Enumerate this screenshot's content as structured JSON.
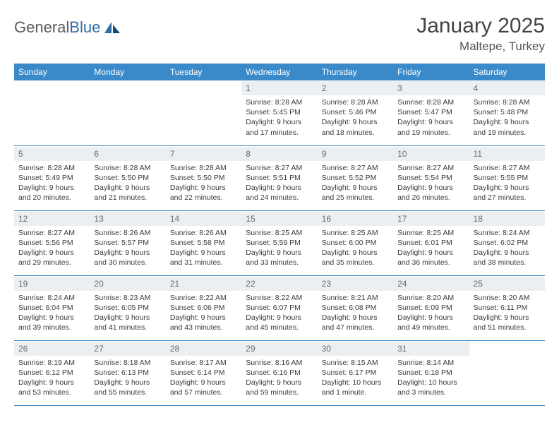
{
  "brand": {
    "name_a": "General",
    "name_b": "Blue"
  },
  "title": "January 2025",
  "location": "Maltepe, Turkey",
  "colors": {
    "header_bg": "#3a8ac9",
    "header_text": "#ffffff",
    "daynum_bg": "#eceff1",
    "border": "#3a8ac9",
    "body_text": "#3b3b3b",
    "title_text": "#444444",
    "logo_gray": "#5a5a5a",
    "logo_blue": "#2f6fa8"
  },
  "weekdays": [
    "Sunday",
    "Monday",
    "Tuesday",
    "Wednesday",
    "Thursday",
    "Friday",
    "Saturday"
  ],
  "font": {
    "family": "Arial",
    "day_header_size_pt": 9,
    "cell_size_pt": 8,
    "title_size_pt": 22
  },
  "weeks": [
    [
      null,
      null,
      null,
      {
        "n": "1",
        "sunrise": "8:28 AM",
        "sunset": "5:45 PM",
        "daylight": "9 hours and 17 minutes."
      },
      {
        "n": "2",
        "sunrise": "8:28 AM",
        "sunset": "5:46 PM",
        "daylight": "9 hours and 18 minutes."
      },
      {
        "n": "3",
        "sunrise": "8:28 AM",
        "sunset": "5:47 PM",
        "daylight": "9 hours and 19 minutes."
      },
      {
        "n": "4",
        "sunrise": "8:28 AM",
        "sunset": "5:48 PM",
        "daylight": "9 hours and 19 minutes."
      }
    ],
    [
      {
        "n": "5",
        "sunrise": "8:28 AM",
        "sunset": "5:49 PM",
        "daylight": "9 hours and 20 minutes."
      },
      {
        "n": "6",
        "sunrise": "8:28 AM",
        "sunset": "5:50 PM",
        "daylight": "9 hours and 21 minutes."
      },
      {
        "n": "7",
        "sunrise": "8:28 AM",
        "sunset": "5:50 PM",
        "daylight": "9 hours and 22 minutes."
      },
      {
        "n": "8",
        "sunrise": "8:27 AM",
        "sunset": "5:51 PM",
        "daylight": "9 hours and 24 minutes."
      },
      {
        "n": "9",
        "sunrise": "8:27 AM",
        "sunset": "5:52 PM",
        "daylight": "9 hours and 25 minutes."
      },
      {
        "n": "10",
        "sunrise": "8:27 AM",
        "sunset": "5:54 PM",
        "daylight": "9 hours and 26 minutes."
      },
      {
        "n": "11",
        "sunrise": "8:27 AM",
        "sunset": "5:55 PM",
        "daylight": "9 hours and 27 minutes."
      }
    ],
    [
      {
        "n": "12",
        "sunrise": "8:27 AM",
        "sunset": "5:56 PM",
        "daylight": "9 hours and 29 minutes."
      },
      {
        "n": "13",
        "sunrise": "8:26 AM",
        "sunset": "5:57 PM",
        "daylight": "9 hours and 30 minutes."
      },
      {
        "n": "14",
        "sunrise": "8:26 AM",
        "sunset": "5:58 PM",
        "daylight": "9 hours and 31 minutes."
      },
      {
        "n": "15",
        "sunrise": "8:25 AM",
        "sunset": "5:59 PM",
        "daylight": "9 hours and 33 minutes."
      },
      {
        "n": "16",
        "sunrise": "8:25 AM",
        "sunset": "6:00 PM",
        "daylight": "9 hours and 35 minutes."
      },
      {
        "n": "17",
        "sunrise": "8:25 AM",
        "sunset": "6:01 PM",
        "daylight": "9 hours and 36 minutes."
      },
      {
        "n": "18",
        "sunrise": "8:24 AM",
        "sunset": "6:02 PM",
        "daylight": "9 hours and 38 minutes."
      }
    ],
    [
      {
        "n": "19",
        "sunrise": "8:24 AM",
        "sunset": "6:04 PM",
        "daylight": "9 hours and 39 minutes."
      },
      {
        "n": "20",
        "sunrise": "8:23 AM",
        "sunset": "6:05 PM",
        "daylight": "9 hours and 41 minutes."
      },
      {
        "n": "21",
        "sunrise": "8:22 AM",
        "sunset": "6:06 PM",
        "daylight": "9 hours and 43 minutes."
      },
      {
        "n": "22",
        "sunrise": "8:22 AM",
        "sunset": "6:07 PM",
        "daylight": "9 hours and 45 minutes."
      },
      {
        "n": "23",
        "sunrise": "8:21 AM",
        "sunset": "6:08 PM",
        "daylight": "9 hours and 47 minutes."
      },
      {
        "n": "24",
        "sunrise": "8:20 AM",
        "sunset": "6:09 PM",
        "daylight": "9 hours and 49 minutes."
      },
      {
        "n": "25",
        "sunrise": "8:20 AM",
        "sunset": "6:11 PM",
        "daylight": "9 hours and 51 minutes."
      }
    ],
    [
      {
        "n": "26",
        "sunrise": "8:19 AM",
        "sunset": "6:12 PM",
        "daylight": "9 hours and 53 minutes."
      },
      {
        "n": "27",
        "sunrise": "8:18 AM",
        "sunset": "6:13 PM",
        "daylight": "9 hours and 55 minutes."
      },
      {
        "n": "28",
        "sunrise": "8:17 AM",
        "sunset": "6:14 PM",
        "daylight": "9 hours and 57 minutes."
      },
      {
        "n": "29",
        "sunrise": "8:16 AM",
        "sunset": "6:16 PM",
        "daylight": "9 hours and 59 minutes."
      },
      {
        "n": "30",
        "sunrise": "8:15 AM",
        "sunset": "6:17 PM",
        "daylight": "10 hours and 1 minute."
      },
      {
        "n": "31",
        "sunrise": "8:14 AM",
        "sunset": "6:18 PM",
        "daylight": "10 hours and 3 minutes."
      },
      null
    ]
  ],
  "labels": {
    "sunrise": "Sunrise:",
    "sunset": "Sunset:",
    "daylight": "Daylight:"
  }
}
